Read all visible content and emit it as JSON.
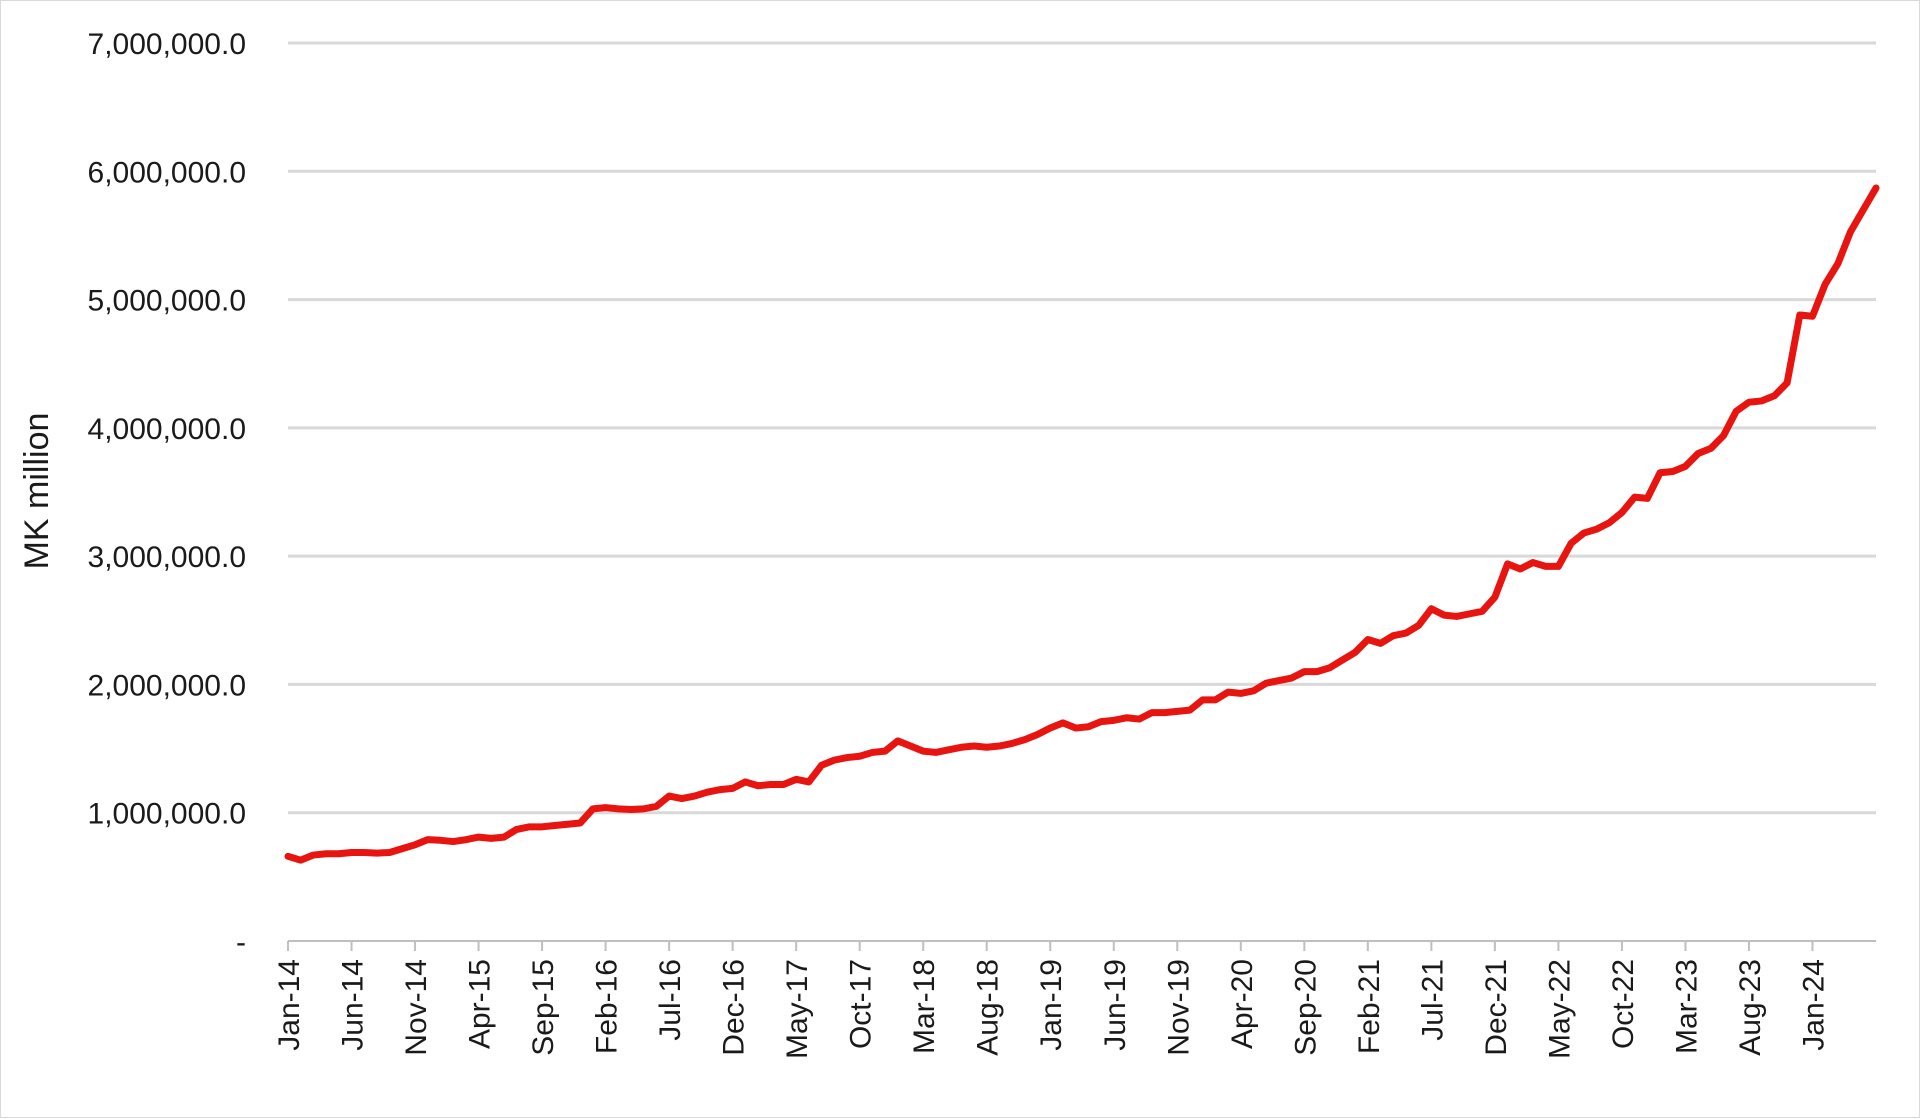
{
  "chart_data": {
    "type": "line",
    "ylabel": "MK million",
    "xlabel": "",
    "title": "",
    "ylim": [
      0,
      7000000
    ],
    "y_ticks": [
      0,
      1000000,
      2000000,
      3000000,
      4000000,
      5000000,
      6000000,
      7000000
    ],
    "y_tick_labels": [
      "-",
      "1,000,000.0",
      "2,000,000.0",
      "3,000,000.0",
      "4,000,000.0",
      "5,000,000.0",
      "6,000,000.0",
      "7,000,000.0"
    ],
    "x_tick_labels": [
      "Jan-14",
      "Jun-14",
      "Nov-14",
      "Apr-15",
      "Sep-15",
      "Feb-16",
      "Jul-16",
      "Dec-16",
      "May-17",
      "Oct-17",
      "Mar-18",
      "Aug-18",
      "Jan-19",
      "Jun-19",
      "Nov-19",
      "Apr-20",
      "Sep-20",
      "Feb-21",
      "Jul-21",
      "Dec-21",
      "May-22",
      "Oct-22",
      "Mar-23",
      "Aug-23",
      "Jan-24"
    ],
    "x_start": "Jan-14",
    "x_end": "Jun-24",
    "grid": true,
    "series": [
      {
        "color": "#e8140f",
        "values": [
          660000,
          630000,
          670000,
          680000,
          680000,
          690000,
          690000,
          685000,
          690000,
          720000,
          750000,
          790000,
          785000,
          775000,
          790000,
          810000,
          800000,
          810000,
          870000,
          890000,
          890000,
          900000,
          910000,
          920000,
          1030000,
          1040000,
          1030000,
          1025000,
          1030000,
          1050000,
          1130000,
          1110000,
          1130000,
          1160000,
          1180000,
          1190000,
          1240000,
          1210000,
          1220000,
          1220000,
          1260000,
          1240000,
          1370000,
          1410000,
          1430000,
          1440000,
          1470000,
          1480000,
          1560000,
          1520000,
          1480000,
          1470000,
          1490000,
          1510000,
          1520000,
          1510000,
          1520000,
          1540000,
          1570000,
          1610000,
          1660000,
          1700000,
          1660000,
          1670000,
          1710000,
          1720000,
          1740000,
          1730000,
          1780000,
          1780000,
          1790000,
          1800000,
          1880000,
          1880000,
          1940000,
          1930000,
          1950000,
          2010000,
          2030000,
          2050000,
          2100000,
          2100000,
          2130000,
          2190000,
          2250000,
          2350000,
          2320000,
          2380000,
          2400000,
          2460000,
          2590000,
          2540000,
          2530000,
          2550000,
          2570000,
          2680000,
          2940000,
          2900000,
          2950000,
          2920000,
          2920000,
          3100000,
          3180000,
          3210000,
          3260000,
          3340000,
          3460000,
          3450000,
          3650000,
          3660000,
          3700000,
          3800000,
          3840000,
          3940000,
          4130000,
          4200000,
          4210000,
          4250000,
          4350000,
          4880000,
          4870000,
          5120000,
          5280000,
          5530000,
          5700000,
          5870000
        ]
      }
    ]
  }
}
